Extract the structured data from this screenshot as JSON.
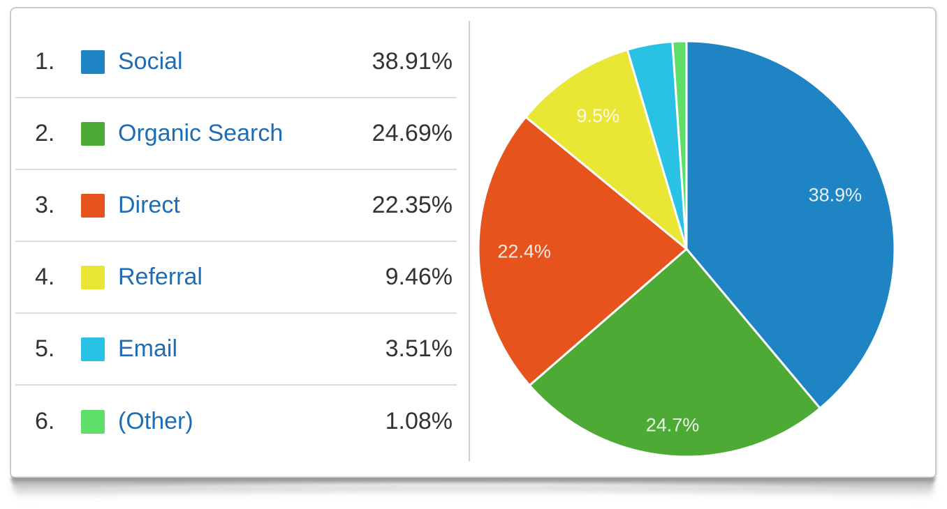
{
  "legend": {
    "rows": [
      {
        "rank": "1.",
        "label": "Social",
        "value": "38.91%",
        "color": "#1f84c3"
      },
      {
        "rank": "2.",
        "label": "Organic Search",
        "value": "24.69%",
        "color": "#4caa35"
      },
      {
        "rank": "3.",
        "label": "Direct",
        "value": "22.35%",
        "color": "#e6531c"
      },
      {
        "rank": "4.",
        "label": "Referral",
        "value": "9.46%",
        "color": "#eae636"
      },
      {
        "rank": "5.",
        "label": "Email",
        "value": "3.51%",
        "color": "#29c2e4"
      },
      {
        "rank": "6.",
        "label": "(Other)",
        "value": "1.08%",
        "color": "#5fdf69"
      }
    ]
  },
  "chart_data": {
    "type": "pie",
    "title": "",
    "categories": [
      "Social",
      "Organic Search",
      "Direct",
      "Referral",
      "Email",
      "(Other)"
    ],
    "values": [
      38.91,
      24.69,
      22.35,
      9.46,
      3.51,
      1.08
    ],
    "slice_labels": [
      "38.9%",
      "24.7%",
      "22.4%",
      "9.5%",
      "",
      ""
    ],
    "colors": [
      "#1f84c3",
      "#4caa35",
      "#e6531c",
      "#eae636",
      "#29c2e4",
      "#5fdf69"
    ],
    "start_angle": "top",
    "clockwise": true,
    "slice_border_color": "#ffffff",
    "label_color": "#ffffff",
    "label_radius_fractions": [
      0.76,
      0.85,
      0.78,
      0.77,
      0,
      0
    ],
    "legend_position": "left-table"
  }
}
